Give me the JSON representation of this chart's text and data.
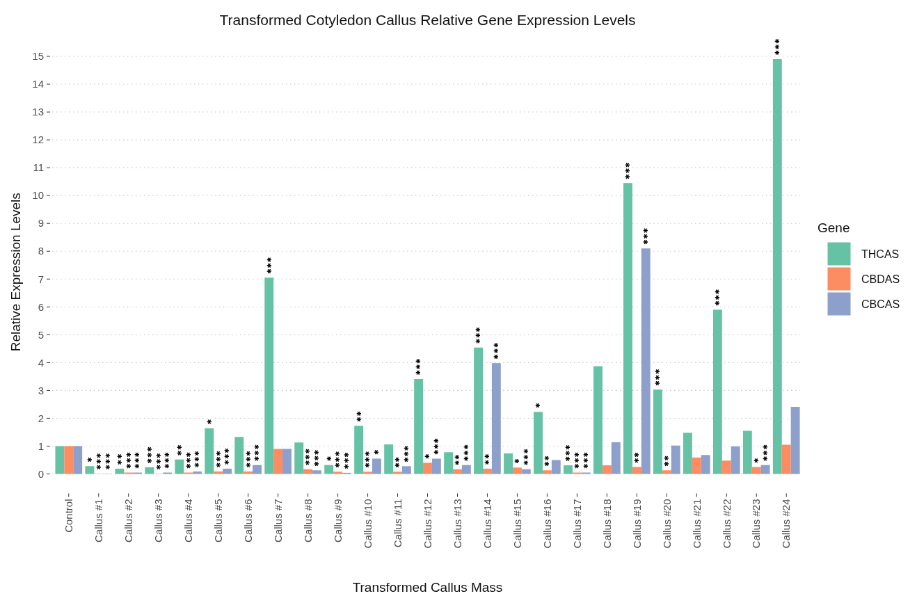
{
  "chart_data": {
    "type": "bar",
    "title": "Transformed Cotyledon Callus Relative Gene Expression Levels",
    "xlabel": "Transformed Callus Mass",
    "ylabel": "Relative Expression Levels",
    "legend_title": "Gene",
    "legend": "right",
    "grid": "y",
    "categories": [
      "Control",
      "Callus #1",
      "Callus #2",
      "Callus #3",
      "Callus #4",
      "Callus #5",
      "Callus #6",
      "Callus #7",
      "Callus #8",
      "Callus #9",
      "Callus #10",
      "Callus #11",
      "Callus #12",
      "Callus #13",
      "Callus #14",
      "Callus #15",
      "Callus #16",
      "Callus #17",
      "Callus #18",
      "Callus #19",
      "Callus #20",
      "Callus #21",
      "Callus #22",
      "Callus #23",
      "Callus #24"
    ],
    "series": [
      {
        "name": "THCAS",
        "color": "#66c2a5",
        "values": [
          1,
          0.28,
          0.19,
          0.24,
          0.52,
          1.64,
          1.33,
          7.05,
          1.13,
          0.32,
          1.73,
          1.06,
          3.41,
          0.78,
          4.54,
          0.74,
          2.23,
          0.31,
          3.87,
          10.45,
          3.03,
          1.48,
          5.9,
          1.55,
          14.9
        ],
        "value_labels": [
          null,
          "*",
          "**",
          "***",
          "**",
          "*",
          null,
          "***",
          null,
          "*",
          "**",
          null,
          "***",
          null,
          "***",
          null,
          "*",
          "***",
          null,
          "***",
          "***",
          null,
          "***",
          null,
          "***"
        ]
      },
      {
        "name": "CBDAS",
        "color": "#fc8d62",
        "values": [
          1,
          0.01,
          0.05,
          0.01,
          0.05,
          0.09,
          0.09,
          0.9,
          0.17,
          0.08,
          0.08,
          0.08,
          0.4,
          0.17,
          0.19,
          0.23,
          0.13,
          0.05,
          0.31,
          0.25,
          0.13,
          0.59,
          0.48,
          0.25,
          1.05
        ],
        "value_labels": [
          null,
          "***",
          "***",
          "***",
          "***",
          "***",
          "***",
          null,
          "***",
          "***",
          "***",
          "**",
          "*",
          "**",
          "**",
          "*",
          "**",
          "***",
          null,
          "**",
          "**",
          null,
          null,
          "*",
          null
        ]
      },
      {
        "name": "CBCAS",
        "color": "#8da0cb",
        "values": [
          1,
          0.01,
          0.05,
          0.05,
          0.09,
          0.19,
          0.32,
          0.9,
          0.13,
          0.04,
          0.55,
          0.28,
          0.55,
          0.32,
          3.98,
          0.17,
          0.5,
          0.05,
          1.14,
          8.1,
          1.02,
          0.68,
          0.99,
          0.32,
          2.41
        ],
        "value_labels": [
          null,
          "***",
          "***",
          "***",
          "***",
          "***",
          "***",
          null,
          "***",
          "***",
          "*",
          "***",
          "***",
          "***",
          "***",
          "***",
          null,
          "***",
          null,
          "***",
          null,
          null,
          null,
          "***",
          null
        ]
      }
    ],
    "ylim": [
      0,
      15
    ],
    "yticks": [
      0,
      1,
      2,
      3,
      4,
      5,
      6,
      7,
      8,
      9,
      10,
      11,
      12,
      13,
      14,
      15
    ]
  }
}
